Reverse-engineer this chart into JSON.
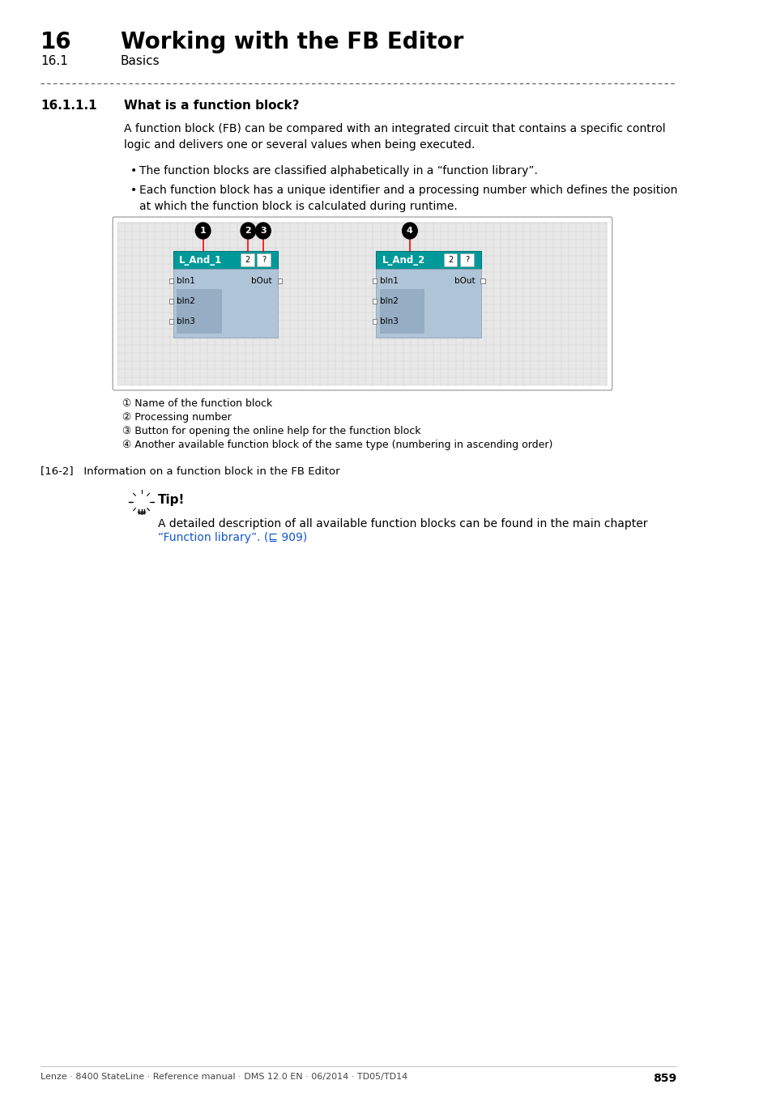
{
  "title_number": "16",
  "title_text": "Working with the FB Editor",
  "subtitle_number": "16.1",
  "subtitle_text": "Basics",
  "section_number": "16.1.1.1",
  "section_title": "What is a function block?",
  "body_text": "A function block (FB) can be compared with an integrated circuit that contains a specific control\nlogic and delivers one or several values when being executed.",
  "bullets": [
    "The function blocks are classified alphabetically in a “function library”.",
    "Each function block has a unique identifier and a processing number which defines the position\nat which the function block is calculated during runtime."
  ],
  "legend_items": [
    "① Name of the function block",
    "② Processing number",
    "③ Button for opening the online help for the function block",
    "④ Another available function block of the same type (numbering in ascending order)"
  ],
  "figure_caption": "[16-2]   Information on a function block in the FB Editor",
  "tip_title": "Tip!",
  "tip_text": "A detailed description of all available function blocks can be found in the main chapter\n“Function library”. (⊑ 909)",
  "footer_text": "Lenze · 8400 StateLine · Reference manual · DMS 12.0 EN · 06/2014 · TD05/TD14",
  "page_number": "859",
  "teal_color": "#009999",
  "block_bg": "#b0c4d8",
  "grid_bg": "#e8e8e8",
  "outer_box_bg": "#ffffff",
  "dashed_line_color": "#555555"
}
